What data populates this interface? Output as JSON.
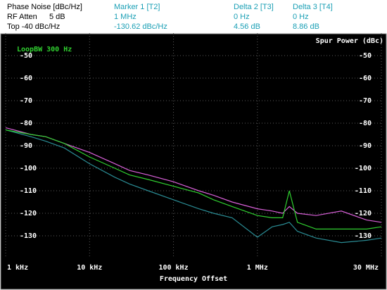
{
  "header": {
    "title": "Phase Noise [dBc/Hz]",
    "rf_atten_label": "RF Atten",
    "rf_atten_value": "5 dB",
    "top": "Top -40 dBc/Hz",
    "marker1": [
      "Marker 1 [T2]",
      "1 MHz",
      "-130.62 dBc/Hz"
    ],
    "delta2": [
      "Delta 2 [T3]",
      "0 Hz",
      "4.56 dB"
    ],
    "delta3": [
      "Delta 3 [T4]",
      "0 Hz",
      "8.86 dB"
    ]
  },
  "chart_data": {
    "type": "line",
    "xscale": "log",
    "xlabel": "Frequency Offset",
    "y2label": "Spur Power (dBc)",
    "annotation": "LoopBW 300 Hz",
    "grid": true,
    "x": [
      1000,
      2000,
      3000,
      5000,
      10000,
      20000,
      30000,
      50000,
      100000,
      200000,
      300000,
      500000,
      1000000,
      1500000,
      2000000,
      2400000,
      3000000,
      5000000,
      10000000,
      20000000,
      30000000
    ],
    "xlim": [
      1000,
      30000000
    ],
    "xticks": [
      {
        "value": 1000,
        "label": "1 kHz"
      },
      {
        "value": 10000,
        "label": "10 kHz"
      },
      {
        "value": 100000,
        "label": "100 kHz"
      },
      {
        "value": 1000000,
        "label": "1 MHz"
      },
      {
        "value": 30000000,
        "label": "30 MHz"
      }
    ],
    "ylim": [
      -140,
      -40
    ],
    "yticks": [
      -50,
      -60,
      -70,
      -80,
      -90,
      -100,
      -110,
      -120,
      -130
    ],
    "y2lim": [
      -140,
      -40
    ],
    "y2ticks": [
      -50,
      -60,
      -70,
      -80,
      -90,
      -100,
      -110,
      -120,
      -130
    ],
    "series": [
      {
        "color": "#d860d8",
        "values": [
          -82,
          -85,
          -86,
          -89,
          -93,
          -98,
          -101,
          -103,
          -106,
          -110,
          -112,
          -115,
          -118,
          -119,
          -120,
          -117,
          -120,
          -121,
          -119,
          -123,
          -124
        ]
      },
      {
        "color": "#2a8c94",
        "values": [
          -83,
          -86,
          -88,
          -91,
          -98,
          -104,
          -107,
          -110,
          -114,
          -118,
          -120,
          -122,
          -130.62,
          -126,
          -125,
          -124,
          -128,
          -131,
          -133,
          -132,
          -131
        ]
      },
      {
        "color": "#30d030",
        "values": [
          -83,
          -85,
          -86,
          -89,
          -95,
          -100,
          -103,
          -105,
          -108,
          -111,
          -114,
          -117,
          -121,
          -122,
          -122,
          -110,
          -124,
          -127,
          -127,
          -127,
          -126
        ]
      }
    ]
  }
}
